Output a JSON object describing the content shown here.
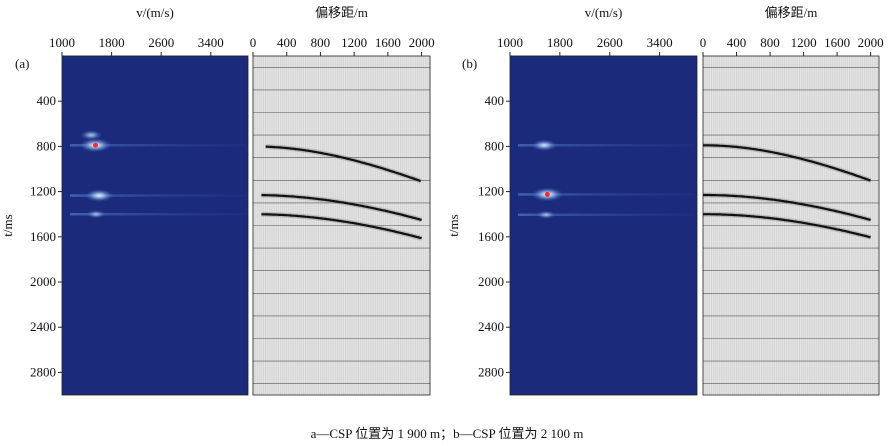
{
  "figure": {
    "caption": "a—CSP 位置为 1 900 m；b—CSP 位置为 2 100 m"
  },
  "chart_data": [
    {
      "panel": "(a)",
      "type": "heatmap",
      "subplots": [
        {
          "kind": "velocity_scan",
          "xlabel": "v/(m/s)",
          "x_ticks": [
            1000,
            1800,
            2600,
            3400
          ],
          "xlim": [
            1000,
            4000
          ],
          "ylabel": "t/ms",
          "y_ticks": [
            400,
            800,
            1200,
            1600,
            2000,
            2400,
            2800
          ],
          "ylim": [
            0,
            3000
          ],
          "colors": {
            "background": "#1c2a7c",
            "energy": "#7fb0e8",
            "peak": "#ff2a2a"
          },
          "energy_points": [
            {
              "v": 1540,
              "t": 790,
              "strength": 1.0,
              "peak": true
            },
            {
              "v": 1470,
              "t": 700,
              "strength": 0.5
            },
            {
              "v": 1600,
              "t": 1235,
              "strength": 0.85
            },
            {
              "v": 1550,
              "t": 1400,
              "strength": 0.35
            }
          ],
          "horizontal_energy_t": [
            790,
            1235,
            1400
          ]
        },
        {
          "kind": "gather",
          "xlabel": "偏移距/m",
          "x_ticks": [
            0,
            400,
            800,
            1200,
            1600,
            2000
          ],
          "xlim": [
            0,
            2100
          ],
          "y_ticks": [
            400,
            800,
            1200,
            1600,
            2000,
            2400,
            2800
          ],
          "ylim": [
            0,
            3000
          ],
          "events": [
            {
              "t0": 800,
              "v": 2600,
              "offset": [
                150,
                2000
              ]
            },
            {
              "t0": 1230,
              "v": 2600,
              "offset": [
                100,
                2000
              ]
            },
            {
              "t0": 1400,
              "v": 2500,
              "offset": [
                100,
                2000
              ]
            }
          ]
        }
      ]
    },
    {
      "panel": "(b)",
      "type": "heatmap",
      "subplots": [
        {
          "kind": "velocity_scan",
          "xlabel": "v/(m/s)",
          "x_ticks": [
            1000,
            1800,
            2600,
            3400
          ],
          "xlim": [
            1000,
            4000
          ],
          "ylabel": "t/ms",
          "y_ticks": [
            400,
            800,
            1200,
            1600,
            2000,
            2400,
            2800
          ],
          "ylim": [
            0,
            3000
          ],
          "colors": {
            "background": "#1c2a7c",
            "energy": "#7fb0e8",
            "peak": "#ff2a2a"
          },
          "energy_points": [
            {
              "v": 1550,
              "t": 790,
              "strength": 0.7
            },
            {
              "v": 1600,
              "t": 1225,
              "strength": 1.0,
              "peak": true
            },
            {
              "v": 1580,
              "t": 1405,
              "strength": 0.35
            }
          ],
          "horizontal_energy_t": [
            790,
            1225,
            1405
          ]
        },
        {
          "kind": "gather",
          "xlabel": "偏移距/m",
          "x_ticks": [
            0,
            400,
            800,
            1200,
            1600,
            2000
          ],
          "xlim": [
            0,
            2100
          ],
          "y_ticks": [
            400,
            800,
            1200,
            1600,
            2000,
            2400,
            2800
          ],
          "ylim": [
            0,
            3000
          ],
          "events": [
            {
              "t0": 790,
              "v": 2600,
              "offset": [
                0,
                2000
              ]
            },
            {
              "t0": 1230,
              "v": 2600,
              "offset": [
                0,
                2000
              ]
            },
            {
              "t0": 1400,
              "v": 2550,
              "offset": [
                0,
                2000
              ]
            }
          ]
        }
      ]
    }
  ]
}
